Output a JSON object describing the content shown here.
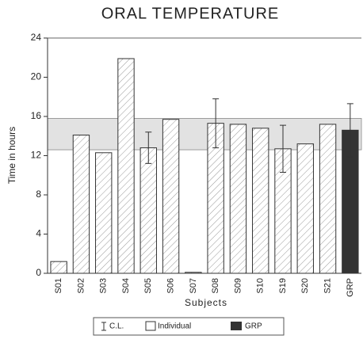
{
  "chart_data": {
    "type": "bar",
    "title": "ORAL TEMPERATURE",
    "y_label": "Time in hours",
    "x_label": "Subjects",
    "categories": [
      "S01",
      "S02",
      "S03",
      "S04",
      "S05",
      "S06",
      "S07",
      "S08",
      "S09",
      "S10",
      "S19",
      "S20",
      "S21",
      "GRP"
    ],
    "values": [
      1.2,
      14.1,
      12.3,
      21.9,
      12.8,
      15.7,
      0.1,
      15.3,
      15.2,
      14.8,
      12.7,
      13.2,
      15.2,
      14.6
    ],
    "errors": [
      null,
      null,
      null,
      null,
      1.6,
      null,
      null,
      2.5,
      null,
      null,
      2.4,
      null,
      null,
      2.7
    ],
    "band": [
      12.6,
      15.8
    ],
    "band_color": "#e2e2e2",
    "bar_color": "#ffffff",
    "group_color": "#333333",
    "ylim": [
      0,
      24
    ],
    "yticks": [
      0,
      4,
      8,
      12,
      16,
      20,
      24
    ],
    "legend": [
      "C.L.",
      "Individual",
      "GRP"
    ]
  }
}
